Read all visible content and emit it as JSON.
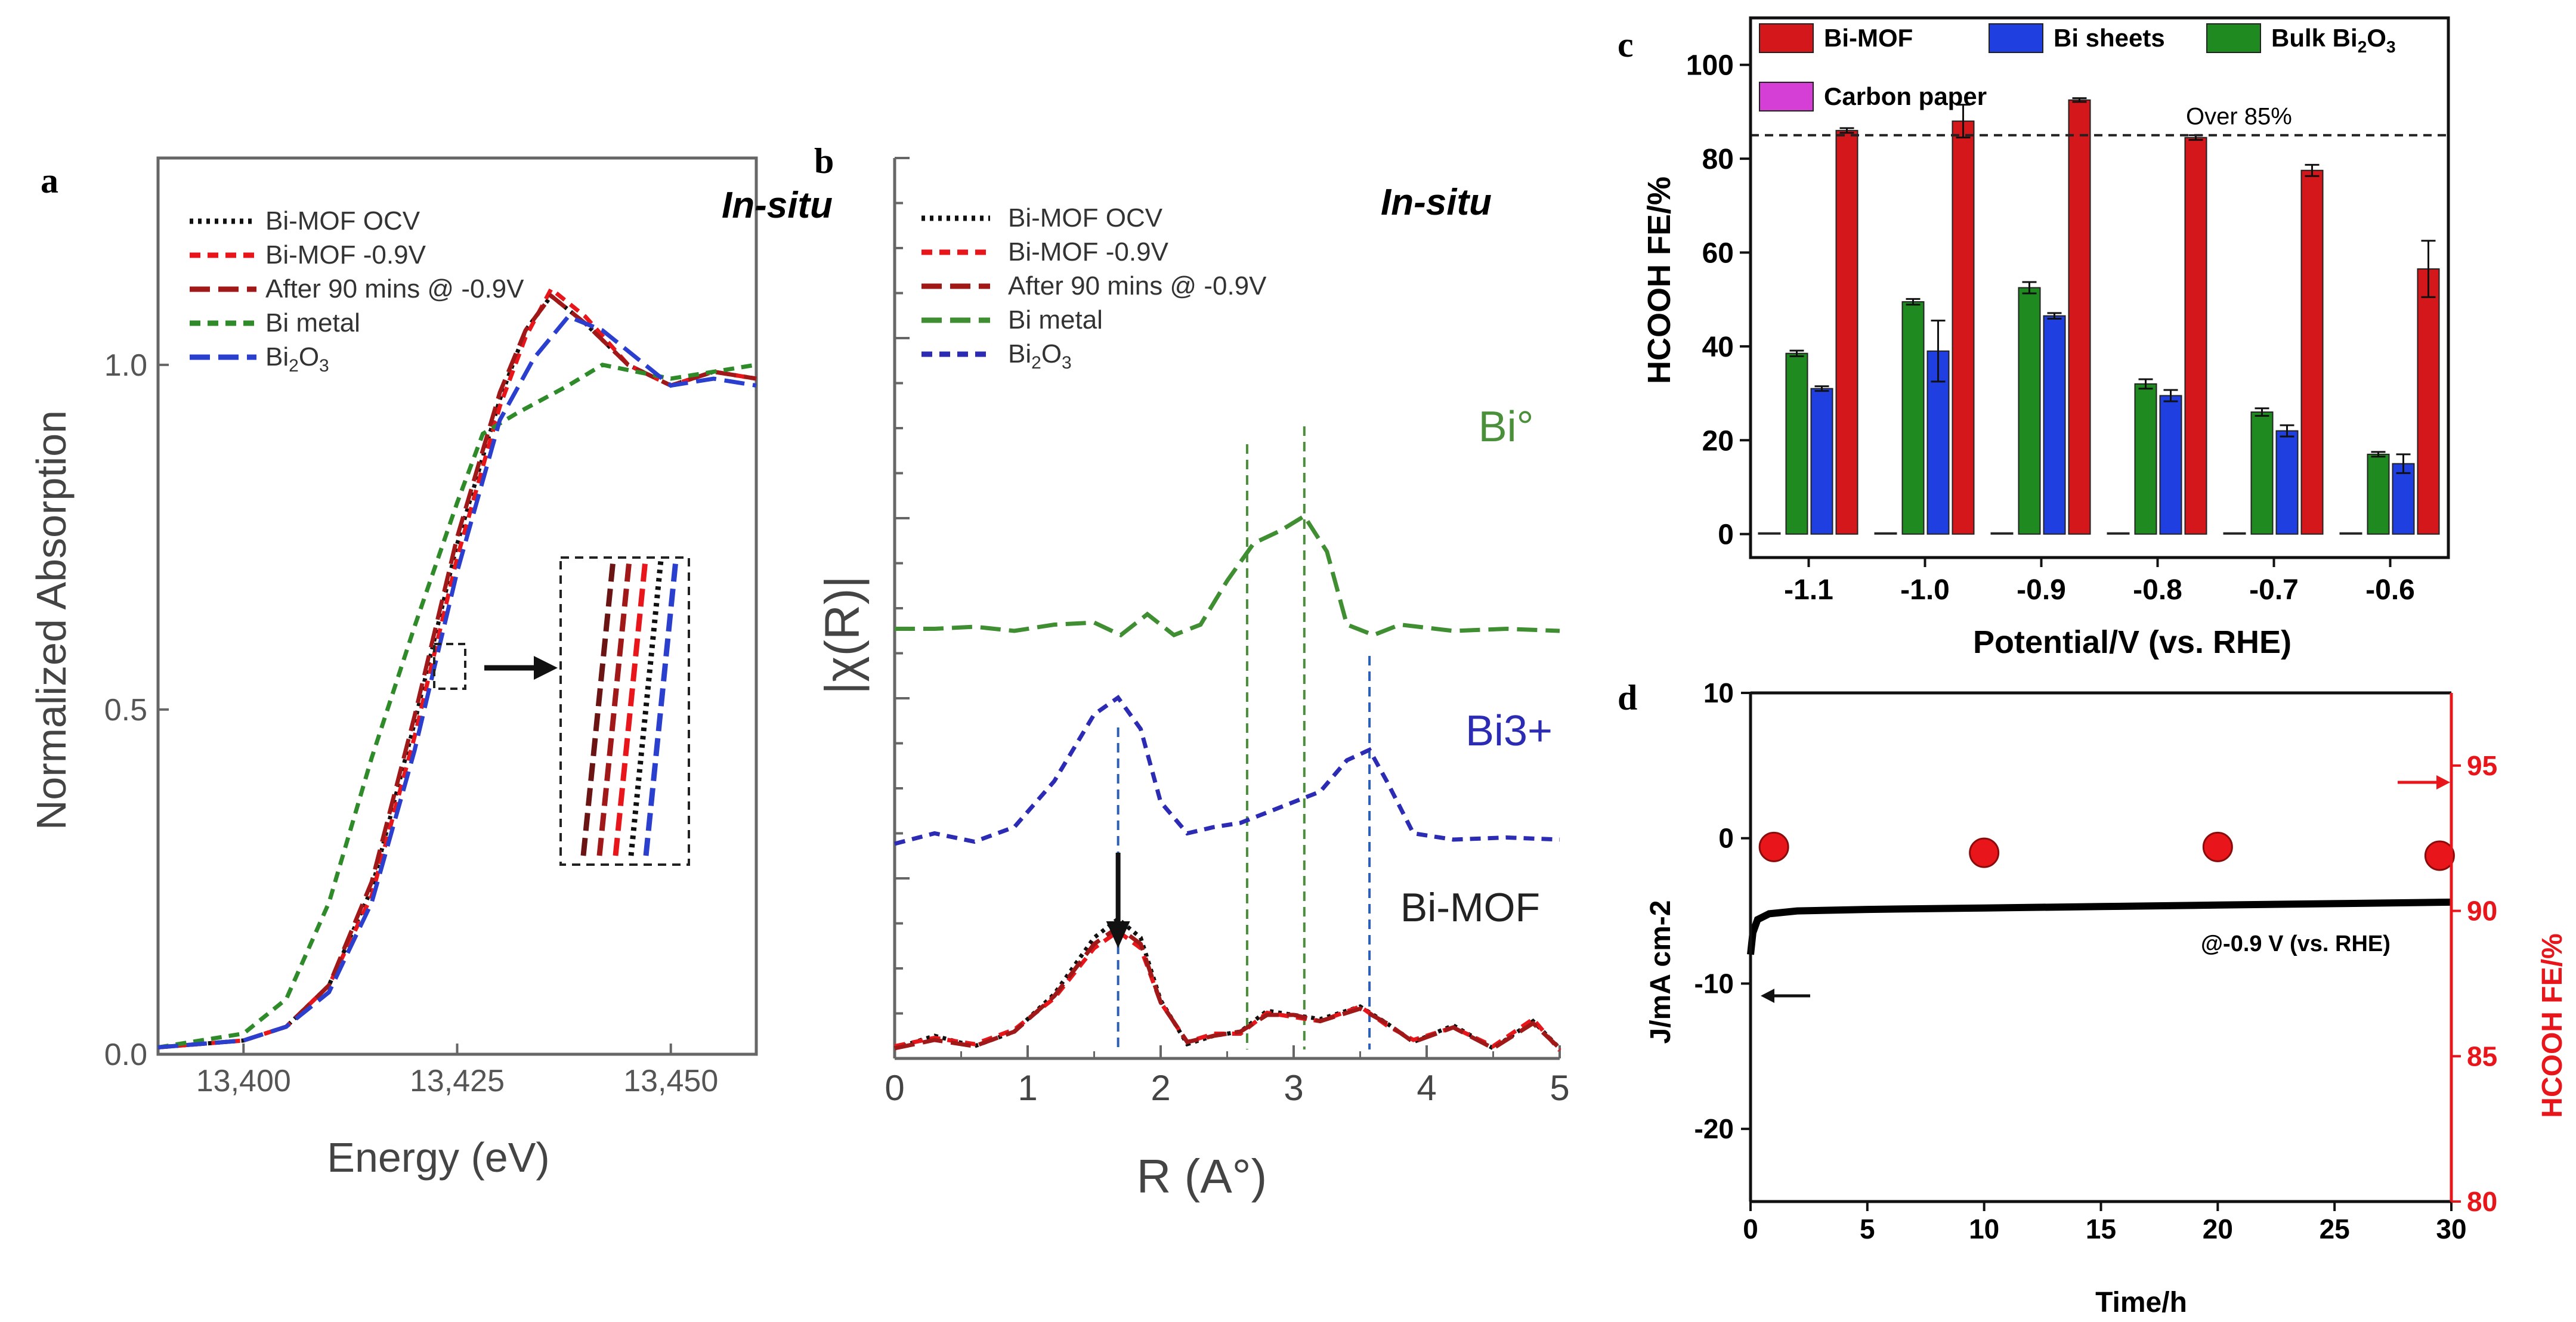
{
  "panels": {
    "a": {
      "label": "a"
    },
    "b": {
      "label": "b"
    },
    "c": {
      "label": "c"
    },
    "d": {
      "label": "d"
    }
  },
  "chart_data": [
    {
      "id": "a",
      "type": "line",
      "xlabel": "Energy (eV)",
      "ylabel": "Normalized Absorption",
      "xlim": [
        13390,
        13460
      ],
      "ylim": [
        0,
        1.3
      ],
      "xticks": [
        13400,
        13425,
        13450
      ],
      "xtick_labels": [
        "13,400",
        "13,425",
        "13,450"
      ],
      "yticks": [
        0.0,
        0.5,
        1.0
      ],
      "ytick_labels": [
        "0.0",
        "0.5",
        "1.0"
      ],
      "annotation": "In-situ",
      "legend_position": "top-left",
      "inset": "magnified edge region (boxed)",
      "series": [
        {
          "name": "Bi-MOF OCV",
          "color": "#111111",
          "dash": "dotted",
          "edge_shift": 0,
          "points": [
            [
              13390,
              0.01
            ],
            [
              13400,
              0.02
            ],
            [
              13405,
              0.04
            ],
            [
              13410,
              0.1
            ],
            [
              13415,
              0.24
            ],
            [
              13420,
              0.48
            ],
            [
              13425,
              0.74
            ],
            [
              13430,
              0.95
            ],
            [
              13433,
              1.05
            ],
            [
              13436,
              1.1
            ],
            [
              13440,
              1.06
            ],
            [
              13445,
              1.0
            ],
            [
              13450,
              0.97
            ],
            [
              13455,
              0.99
            ],
            [
              13460,
              0.98
            ]
          ]
        },
        {
          "name": "Bi-MOF -0.9V",
          "color": "#e8161a",
          "dash": "short-dash",
          "edge_shift": 0.5,
          "points": [
            [
              13390,
              0.01
            ],
            [
              13400,
              0.02
            ],
            [
              13405,
              0.04
            ],
            [
              13410,
              0.1
            ],
            [
              13415,
              0.23
            ],
            [
              13420,
              0.46
            ],
            [
              13425,
              0.72
            ],
            [
              13430,
              0.94
            ],
            [
              13433,
              1.04
            ],
            [
              13436,
              1.11
            ],
            [
              13440,
              1.07
            ],
            [
              13445,
              1.0
            ],
            [
              13450,
              0.97
            ],
            [
              13455,
              0.99
            ],
            [
              13460,
              0.98
            ]
          ]
        },
        {
          "name": "After 90 mins @ -0.9V",
          "color": "#a01818",
          "dash": "long-dash",
          "edge_shift": -0.3,
          "points": [
            [
              13390,
              0.01
            ],
            [
              13400,
              0.02
            ],
            [
              13405,
              0.04
            ],
            [
              13410,
              0.1
            ],
            [
              13415,
              0.25
            ],
            [
              13420,
              0.49
            ],
            [
              13425,
              0.75
            ],
            [
              13430,
              0.96
            ],
            [
              13433,
              1.05
            ],
            [
              13436,
              1.1
            ],
            [
              13440,
              1.06
            ],
            [
              13445,
              1.0
            ],
            [
              13450,
              0.97
            ],
            [
              13455,
              0.99
            ],
            [
              13460,
              0.98
            ]
          ]
        },
        {
          "name": "Bi metal",
          "color": "#2f8a2a",
          "dash": "short-dash",
          "edge_shift": -3,
          "points": [
            [
              13390,
              0.01
            ],
            [
              13400,
              0.03
            ],
            [
              13405,
              0.08
            ],
            [
              13410,
              0.22
            ],
            [
              13415,
              0.43
            ],
            [
              13420,
              0.62
            ],
            [
              13425,
              0.8
            ],
            [
              13428,
              0.9
            ],
            [
              13432,
              0.93
            ],
            [
              13438,
              0.97
            ],
            [
              13442,
              1.0
            ],
            [
              13450,
              0.98
            ],
            [
              13455,
              0.99
            ],
            [
              13460,
              1.0
            ]
          ]
        },
        {
          "name": "Bi2O3",
          "color": "#2b3fcf",
          "dash": "long-dash",
          "edge_shift": 1,
          "points": [
            [
              13390,
              0.01
            ],
            [
              13400,
              0.02
            ],
            [
              13405,
              0.04
            ],
            [
              13410,
              0.09
            ],
            [
              13415,
              0.22
            ],
            [
              13420,
              0.44
            ],
            [
              13425,
              0.7
            ],
            [
              13430,
              0.92
            ],
            [
              13434,
              1.01
            ],
            [
              13438,
              1.07
            ],
            [
              13442,
              1.05
            ],
            [
              13447,
              1.0
            ],
            [
              13450,
              0.97
            ],
            [
              13455,
              0.98
            ],
            [
              13460,
              0.97
            ]
          ]
        }
      ]
    },
    {
      "id": "b",
      "type": "line",
      "xlabel": "R (A°)",
      "ylabel": "|χ(R)|",
      "xlim": [
        0,
        5
      ],
      "xticks": [
        0,
        1,
        2,
        3,
        4,
        5
      ],
      "xtick_labels": [
        "0",
        "1",
        "2",
        "3",
        "4",
        "5"
      ],
      "annotation": "In-situ",
      "legend_position": "top-left",
      "curve_labels": [
        "Bi°",
        "Bi3+",
        "Bi-MOF"
      ],
      "reference_lines_x": [
        1.68,
        2.65,
        3.08,
        3.57
      ],
      "series": [
        {
          "name": "Bi-MOF OCV",
          "color": "#111111",
          "dash": "dotted",
          "offset": 0,
          "points": [
            [
              0,
              0.02
            ],
            [
              0.3,
              0.08
            ],
            [
              0.6,
              0.03
            ],
            [
              0.9,
              0.1
            ],
            [
              1.2,
              0.28
            ],
            [
              1.5,
              0.55
            ],
            [
              1.68,
              0.64
            ],
            [
              1.85,
              0.55
            ],
            [
              2.0,
              0.25
            ],
            [
              2.2,
              0.04
            ],
            [
              2.4,
              0.08
            ],
            [
              2.6,
              0.1
            ],
            [
              2.8,
              0.2
            ],
            [
              3.0,
              0.18
            ],
            [
              3.2,
              0.16
            ],
            [
              3.5,
              0.22
            ],
            [
              3.7,
              0.14
            ],
            [
              3.9,
              0.05
            ],
            [
              4.2,
              0.13
            ],
            [
              4.5,
              0.02
            ],
            [
              4.8,
              0.15
            ],
            [
              5,
              0.02
            ]
          ]
        },
        {
          "name": "Bi-MOF -0.9V",
          "color": "#e8161a",
          "dash": "short-dash",
          "offset": 0,
          "points": [
            [
              0,
              0.03
            ],
            [
              0.3,
              0.07
            ],
            [
              0.6,
              0.04
            ],
            [
              0.9,
              0.11
            ],
            [
              1.2,
              0.26
            ],
            [
              1.5,
              0.5
            ],
            [
              1.68,
              0.58
            ],
            [
              1.85,
              0.5
            ],
            [
              2.0,
              0.24
            ],
            [
              2.2,
              0.05
            ],
            [
              2.4,
              0.09
            ],
            [
              2.6,
              0.09
            ],
            [
              2.8,
              0.19
            ],
            [
              3.0,
              0.17
            ],
            [
              3.2,
              0.15
            ],
            [
              3.5,
              0.22
            ],
            [
              3.7,
              0.13
            ],
            [
              3.9,
              0.06
            ],
            [
              4.2,
              0.12
            ],
            [
              4.5,
              0.03
            ],
            [
              4.8,
              0.16
            ],
            [
              5,
              0.01
            ]
          ]
        },
        {
          "name": "After 90 mins @ -0.9V",
          "color": "#a01818",
          "dash": "long-dash",
          "offset": 0,
          "points": [
            [
              0,
              0.02
            ],
            [
              0.3,
              0.06
            ],
            [
              0.6,
              0.03
            ],
            [
              0.9,
              0.1
            ],
            [
              1.2,
              0.27
            ],
            [
              1.5,
              0.52
            ],
            [
              1.68,
              0.6
            ],
            [
              1.85,
              0.52
            ],
            [
              2.0,
              0.24
            ],
            [
              2.2,
              0.05
            ],
            [
              2.4,
              0.08
            ],
            [
              2.6,
              0.1
            ],
            [
              2.8,
              0.18
            ],
            [
              3.0,
              0.18
            ],
            [
              3.2,
              0.15
            ],
            [
              3.5,
              0.21
            ],
            [
              3.7,
              0.14
            ],
            [
              3.9,
              0.05
            ],
            [
              4.2,
              0.12
            ],
            [
              4.5,
              0.02
            ],
            [
              4.8,
              0.14
            ],
            [
              5,
              0.02
            ]
          ]
        },
        {
          "name": "Bi metal",
          "color": "#3f8f32",
          "dash": "long-dash",
          "offset": 2.0,
          "points": [
            [
              0,
              0.03
            ],
            [
              0.3,
              0.03
            ],
            [
              0.6,
              0.04
            ],
            [
              0.9,
              0.02
            ],
            [
              1.2,
              0.05
            ],
            [
              1.5,
              0.06
            ],
            [
              1.7,
              0.0
            ],
            [
              1.9,
              0.1
            ],
            [
              2.1,
              0.0
            ],
            [
              2.3,
              0.05
            ],
            [
              2.5,
              0.26
            ],
            [
              2.7,
              0.44
            ],
            [
              2.9,
              0.5
            ],
            [
              3.08,
              0.57
            ],
            [
              3.25,
              0.4
            ],
            [
              3.4,
              0.05
            ],
            [
              3.6,
              0.0
            ],
            [
              3.8,
              0.05
            ],
            [
              4.2,
              0.02
            ],
            [
              4.6,
              0.03
            ],
            [
              5,
              0.02
            ]
          ]
        },
        {
          "name": "Bi2O3",
          "color": "#2b2bb3",
          "dash": "short-dash",
          "offset": 1.0,
          "points": [
            [
              0,
              0.0
            ],
            [
              0.3,
              0.05
            ],
            [
              0.6,
              0.01
            ],
            [
              0.9,
              0.08
            ],
            [
              1.2,
              0.3
            ],
            [
              1.5,
              0.62
            ],
            [
              1.68,
              0.7
            ],
            [
              1.85,
              0.55
            ],
            [
              2.0,
              0.2
            ],
            [
              2.2,
              0.05
            ],
            [
              2.4,
              0.08
            ],
            [
              2.6,
              0.1
            ],
            [
              2.8,
              0.15
            ],
            [
              3.0,
              0.2
            ],
            [
              3.2,
              0.25
            ],
            [
              3.4,
              0.4
            ],
            [
              3.57,
              0.45
            ],
            [
              3.7,
              0.3
            ],
            [
              3.9,
              0.05
            ],
            [
              4.2,
              0.02
            ],
            [
              4.6,
              0.03
            ],
            [
              5,
              0.02
            ]
          ]
        }
      ]
    },
    {
      "id": "c",
      "type": "bar",
      "xlabel": "Potential/V (vs. RHE)",
      "ylabel": "HCOOH FE/%",
      "ylim": [
        -5,
        110
      ],
      "yticks": [
        0,
        20,
        40,
        60,
        80,
        100
      ],
      "categories": [
        "-1.1",
        "-1.0",
        "-0.9",
        "-0.8",
        "-0.7",
        "-0.6"
      ],
      "hline": 85,
      "hline_label": "Over 85%",
      "legend": [
        "Bi-MOF",
        "Bi sheets",
        "Bulk Bi2O3",
        "Carbon paper"
      ],
      "series": [
        {
          "name": "Carbon paper",
          "color": "#d63fd6",
          "values": [
            0,
            0,
            0,
            0,
            0,
            0
          ],
          "errors": [
            0,
            0,
            0,
            0,
            0,
            0
          ]
        },
        {
          "name": "Bulk Bi2O3",
          "color": "#1f8a1f",
          "values": [
            38.5,
            49.5,
            52.5,
            32,
            26,
            17
          ],
          "errors": [
            0.6,
            0.6,
            1.2,
            1,
            0.8,
            0.5
          ]
        },
        {
          "name": "Bi sheets",
          "color": "#1f3fe0",
          "values": [
            31,
            39,
            46.5,
            29.5,
            22,
            15
          ],
          "errors": [
            0.5,
            6.5,
            0.6,
            1.2,
            1.2,
            2
          ]
        },
        {
          "name": "Bi-MOF",
          "color": "#d4171a",
          "values": [
            86,
            88,
            92.5,
            84.5,
            77.5,
            56.5
          ],
          "errors": [
            0.5,
            3.5,
            0.4,
            0.5,
            1.2,
            6
          ]
        }
      ]
    },
    {
      "id": "d",
      "type": "line",
      "xlabel": "Time/h",
      "ylabel": "J/mA cm-2",
      "ylabel_right": "HCOOH FE/%",
      "xlim": [
        0,
        30
      ],
      "ylim": [
        -25,
        10
      ],
      "ylim_right": [
        80,
        97.5
      ],
      "xticks": [
        0,
        5,
        10,
        15,
        20,
        25,
        30
      ],
      "yticks": [
        10,
        0,
        -10,
        -20
      ],
      "yticks_right": [
        95,
        90,
        85,
        80
      ],
      "annotation": "@-0.9 V (vs. RHE)",
      "current_series": {
        "name": "J",
        "color": "#000000",
        "points": [
          [
            0,
            -8
          ],
          [
            0.1,
            -6.5
          ],
          [
            0.3,
            -5.6
          ],
          [
            0.8,
            -5.2
          ],
          [
            2,
            -5.0
          ],
          [
            5,
            -4.9
          ],
          [
            10,
            -4.8
          ],
          [
            15,
            -4.7
          ],
          [
            20,
            -4.6
          ],
          [
            25,
            -4.5
          ],
          [
            30,
            -4.4
          ]
        ]
      },
      "fe_series": {
        "name": "HCOOH FE",
        "color": "#e8161a",
        "x": [
          1,
          10,
          20,
          29.5
        ],
        "values": [
          92.2,
          92.0,
          92.2,
          91.9
        ]
      }
    }
  ]
}
